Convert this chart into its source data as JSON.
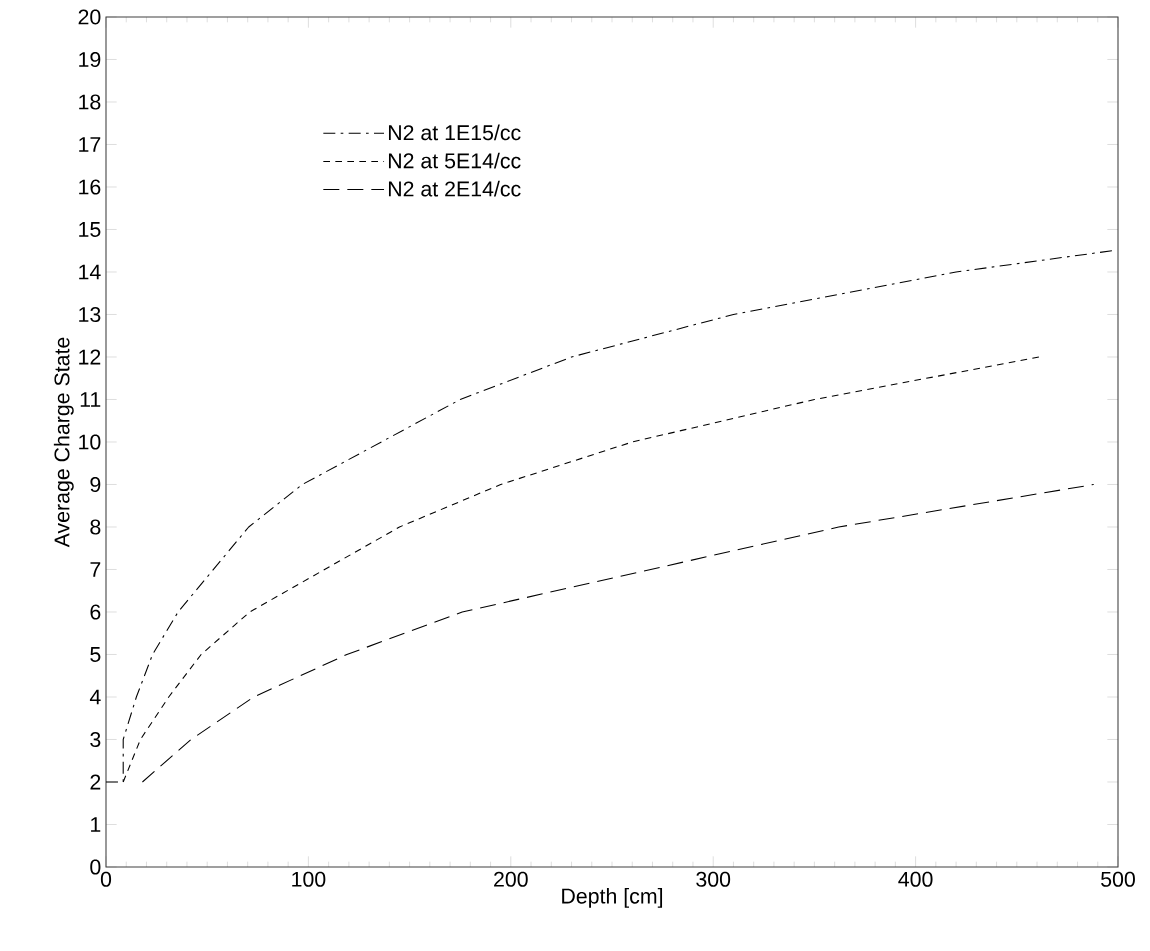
{
  "chart_data": {
    "type": "line",
    "xlabel": "Depth [cm]",
    "ylabel": "Average Charge State",
    "xlim": [
      0,
      500
    ],
    "ylim": [
      0,
      20
    ],
    "xticks": [
      0,
      100,
      200,
      300,
      400,
      500
    ],
    "yticks": [
      0,
      1,
      2,
      3,
      4,
      5,
      6,
      7,
      8,
      9,
      10,
      11,
      12,
      13,
      14,
      15,
      16,
      17,
      18,
      19,
      20
    ],
    "legend": "top left",
    "grid": false,
    "marker": "none",
    "series": [
      {
        "name": "N2 at 1E15/cc",
        "color": "#000000",
        "line_style": "dashed",
        "x": [
          0,
          8.5,
          8.5,
          15,
          23,
          35.6,
          70.5,
          97,
          175,
          230,
          310,
          420,
          497
        ],
        "values": [
          2,
          2,
          3,
          4,
          5,
          6,
          8,
          9,
          11,
          12,
          13,
          14,
          14.5
        ]
      },
      {
        "name": "N2 at 5E14/cc",
        "color": "#000000",
        "line_style": "dashed",
        "x": [
          8.5,
          17,
          31,
          47,
          71,
          145,
          195,
          260,
          350,
          461
        ],
        "values": [
          2,
          3,
          4,
          5,
          6,
          8,
          9,
          10,
          11,
          12
        ]
      },
      {
        "name": "N2 at 2E14/cc",
        "color": "#000000",
        "line_style": "dashed",
        "x": [
          18,
          42,
          73,
          119,
          176,
          362,
          488
        ],
        "values": [
          2,
          3,
          4,
          5,
          6,
          8,
          9
        ]
      }
    ]
  }
}
